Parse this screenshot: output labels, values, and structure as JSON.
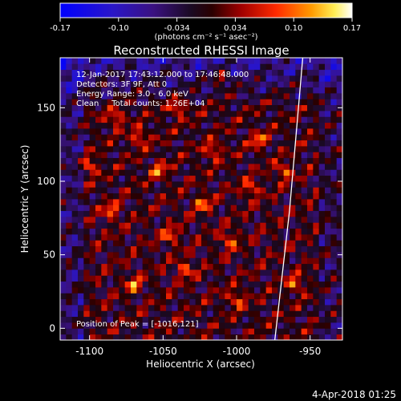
{
  "colorbar": {
    "ticks": [
      "-0.17",
      "-0.10",
      "-0.034",
      "0.034",
      "0.10",
      "0.17"
    ],
    "units": "(photons cm⁻² s⁻¹ asec⁻²)",
    "range": [
      -0.17,
      0.17
    ]
  },
  "plot": {
    "title": "Reconstructed RHESSI Image",
    "xlabel": "Heliocentric X (arcsec)",
    "ylabel": "Heliocentric Y (arcsec)",
    "info_lines": [
      "12-Jan-2017 17:43:12.000 to 17:46:48.000",
      "Detectors: 3F 9F, Att 0",
      "Energy Range: 3.0 - 6.0 keV",
      "Clean     Total counts: 1.26E+04"
    ],
    "peak_label": "Position of Peak = [-1016,121]",
    "footer_date": "4-Apr-2018 01:25"
  },
  "chart_data": {
    "type": "heatmap",
    "title": "Reconstructed RHESSI Image",
    "xlabel": "Heliocentric X (arcsec)",
    "ylabel": "Heliocentric Y (arcsec)",
    "xlim": [
      -1120,
      -928
    ],
    "ylim": [
      -8,
      184
    ],
    "xticks": [
      -1100,
      -1050,
      -1000,
      -950
    ],
    "yticks": [
      0,
      50,
      100,
      150
    ],
    "xtick_labels": [
      "-1100",
      "-1050",
      "-1000",
      "-950"
    ],
    "ytick_labels": [
      "0",
      "50",
      "100",
      "150"
    ],
    "colorscale": "RHESSI red-temperature (blue negative to white positive)",
    "color_range": [
      -0.17,
      0.17
    ],
    "peak": [
      -1016,
      121
    ],
    "limb_line": [
      [
        -974,
        -8
      ],
      [
        -964,
        80
      ],
      [
        -955,
        184
      ]
    ],
    "bright_spots": [
      [
        -1016,
        121
      ],
      [
        -1023,
        85
      ],
      [
        -1045,
        63
      ],
      [
        -1053,
        108
      ],
      [
        -1082,
        143
      ],
      [
        -1066,
        130
      ],
      [
        -985,
        128
      ],
      [
        -968,
        107
      ],
      [
        -990,
        95
      ],
      [
        -1005,
        60
      ],
      [
        -1035,
        40
      ],
      [
        -1070,
        30
      ],
      [
        -1000,
        20
      ],
      [
        -960,
        30
      ],
      [
        -1085,
        80
      ],
      [
        -1100,
        110
      ],
      [
        -1040,
        150
      ],
      [
        -1010,
        170
      ]
    ]
  }
}
